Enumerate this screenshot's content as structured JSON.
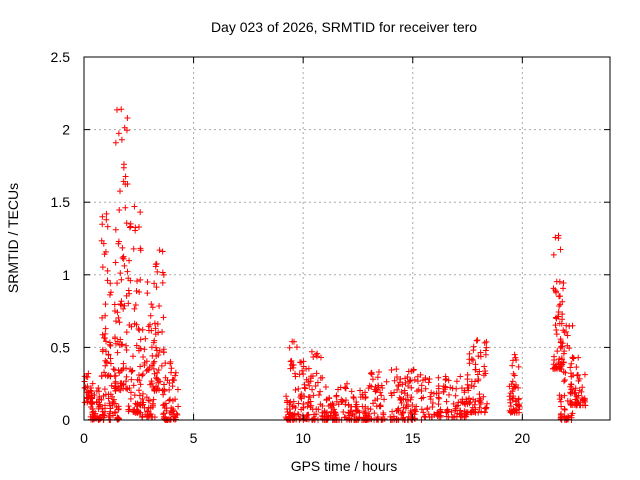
{
  "chart_data": {
    "type": "scatter",
    "title": "Day 023 of 2026, SRMTID for receiver tero",
    "xlabel": "GPS time / hours",
    "ylabel": "SRMTID / TECUs",
    "xlim": [
      0,
      24
    ],
    "ylim": [
      0,
      2.5
    ],
    "xticks": [
      0,
      5,
      10,
      15,
      20
    ],
    "yticks": [
      0,
      0.5,
      1,
      1.5,
      2,
      2.5
    ],
    "xtick_labels": [
      "0",
      "5",
      "10",
      "15",
      "20"
    ],
    "ytick_labels": [
      "0",
      "0.5",
      "1",
      "1.5",
      "2",
      "2.5"
    ],
    "grid": true,
    "marker": "+",
    "color": "#ff0000",
    "series": [
      {
        "name": "SRMTID",
        "clusters": [
          {
            "x": [
              0.0,
              0.4
            ],
            "ymin": 0.12,
            "ymax": 0.32,
            "count": 30
          },
          {
            "x": [
              0.3,
              1.0
            ],
            "ymin": 0.0,
            "ymax": 0.22,
            "count": 60
          },
          {
            "x": [
              0.8,
              1.25
            ],
            "ymin": 0.3,
            "ymax": 1.42,
            "count": 45
          },
          {
            "x": [
              1.1,
              1.6
            ],
            "ymin": 0.0,
            "ymax": 0.35,
            "count": 40
          },
          {
            "x": [
              1.4,
              2.0
            ],
            "ymin": 0.2,
            "ymax": 2.14,
            "count": 80
          },
          {
            "x": [
              2.0,
              2.6
            ],
            "ymin": 0.05,
            "ymax": 1.47,
            "count": 70
          },
          {
            "x": [
              2.5,
              3.3
            ],
            "ymin": 0.02,
            "ymax": 0.95,
            "count": 70
          },
          {
            "x": [
              3.2,
              3.7
            ],
            "ymin": 0.2,
            "ymax": 1.17,
            "count": 45
          },
          {
            "x": [
              3.6,
              4.3
            ],
            "ymin": 0.0,
            "ymax": 0.4,
            "count": 60
          },
          {
            "x": [
              9.2,
              9.8
            ],
            "ymin": 0.0,
            "ymax": 0.54,
            "count": 55
          },
          {
            "x": [
              9.8,
              11.0
            ],
            "ymin": 0.0,
            "ymax": 0.47,
            "count": 90
          },
          {
            "x": [
              11.0,
              13.0
            ],
            "ymin": 0.0,
            "ymax": 0.25,
            "count": 130
          },
          {
            "x": [
              13.0,
              15.5
            ],
            "ymin": 0.0,
            "ymax": 0.35,
            "count": 150
          },
          {
            "x": [
              15.5,
              17.5
            ],
            "ymin": 0.02,
            "ymax": 0.3,
            "count": 110
          },
          {
            "x": [
              17.5,
              18.4
            ],
            "ymin": 0.05,
            "ymax": 0.55,
            "count": 70
          },
          {
            "x": [
              19.4,
              19.9
            ],
            "ymin": 0.05,
            "ymax": 0.45,
            "count": 50
          },
          {
            "x": [
              21.4,
              21.9
            ],
            "ymin": 0.35,
            "ymax": 1.27,
            "count": 60
          },
          {
            "x": [
              21.7,
              22.3
            ],
            "ymin": 0.0,
            "ymax": 0.65,
            "count": 55
          },
          {
            "x": [
              22.2,
              22.9
            ],
            "ymin": 0.1,
            "ymax": 0.43,
            "count": 55
          }
        ]
      }
    ]
  }
}
